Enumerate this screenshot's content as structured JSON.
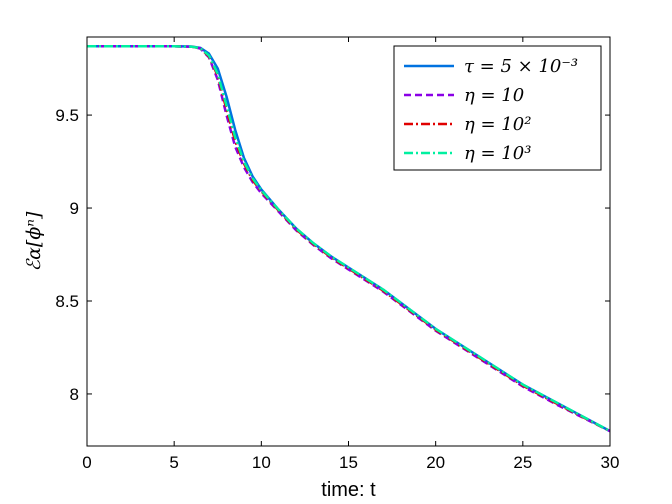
{
  "chart_data": {
    "type": "line",
    "xlabel": "time: t",
    "ylabel": "ℰα[ϕⁿ]",
    "xlim": [
      0,
      30
    ],
    "ylim": [
      7.72,
      9.92
    ],
    "xticks": [
      "0",
      "5",
      "10",
      "15",
      "20",
      "25",
      "30"
    ],
    "yticks": [
      "8",
      "8.5",
      "9",
      "9.5"
    ],
    "grid": false,
    "legend_position": "top-right",
    "series": [
      {
        "name": "τ = 5 × 10⁻³",
        "color": "#0072e0",
        "style": "solid",
        "x": [
          0,
          5,
          6,
          6.5,
          7,
          7.5,
          8,
          8.5,
          9,
          9.5,
          10,
          11,
          12,
          13,
          14,
          15,
          17,
          20,
          23,
          25,
          27,
          30
        ],
        "y": [
          9.87,
          9.87,
          9.869,
          9.862,
          9.83,
          9.75,
          9.6,
          9.42,
          9.27,
          9.17,
          9.1,
          8.99,
          8.89,
          8.81,
          8.74,
          8.68,
          8.56,
          8.35,
          8.17,
          8.05,
          7.95,
          7.8
        ]
      },
      {
        "name": "η = 10",
        "color": "#8a00e6",
        "style": "dashed",
        "x": [
          0,
          5,
          6,
          6.5,
          7,
          7.5,
          8,
          8.5,
          9,
          9.5,
          10,
          11,
          12,
          13,
          14,
          15,
          17,
          20,
          23,
          25,
          27,
          30
        ],
        "y": [
          9.87,
          9.87,
          9.868,
          9.858,
          9.81,
          9.69,
          9.5,
          9.33,
          9.22,
          9.14,
          9.08,
          8.98,
          8.88,
          8.8,
          8.73,
          8.67,
          8.55,
          8.34,
          8.16,
          8.04,
          7.94,
          7.8
        ]
      },
      {
        "name": "η = 10²",
        "color": "#e00000",
        "style": "dashdot",
        "x": [
          0,
          5,
          6,
          6.5,
          7,
          7.5,
          8,
          8.5,
          9,
          9.5,
          10,
          11,
          12,
          13,
          14,
          15,
          17,
          20,
          23,
          25,
          27,
          30
        ],
        "y": [
          9.87,
          9.87,
          9.868,
          9.859,
          9.815,
          9.71,
          9.53,
          9.36,
          9.24,
          9.15,
          9.09,
          8.985,
          8.885,
          8.805,
          8.735,
          8.675,
          8.555,
          8.345,
          8.165,
          8.045,
          7.945,
          7.8
        ]
      },
      {
        "name": "η = 10³",
        "color": "#00f0a0",
        "style": "dashdot",
        "x": [
          0,
          5,
          6,
          6.5,
          7,
          7.5,
          8,
          8.5,
          9,
          9.5,
          10,
          11,
          12,
          13,
          14,
          15,
          17,
          20,
          23,
          25,
          27,
          30
        ],
        "y": [
          9.87,
          9.87,
          9.868,
          9.86,
          9.82,
          9.72,
          9.55,
          9.38,
          9.25,
          9.16,
          9.095,
          8.99,
          8.89,
          8.81,
          8.74,
          8.68,
          8.56,
          8.35,
          8.17,
          8.05,
          7.95,
          7.8
        ]
      }
    ]
  }
}
